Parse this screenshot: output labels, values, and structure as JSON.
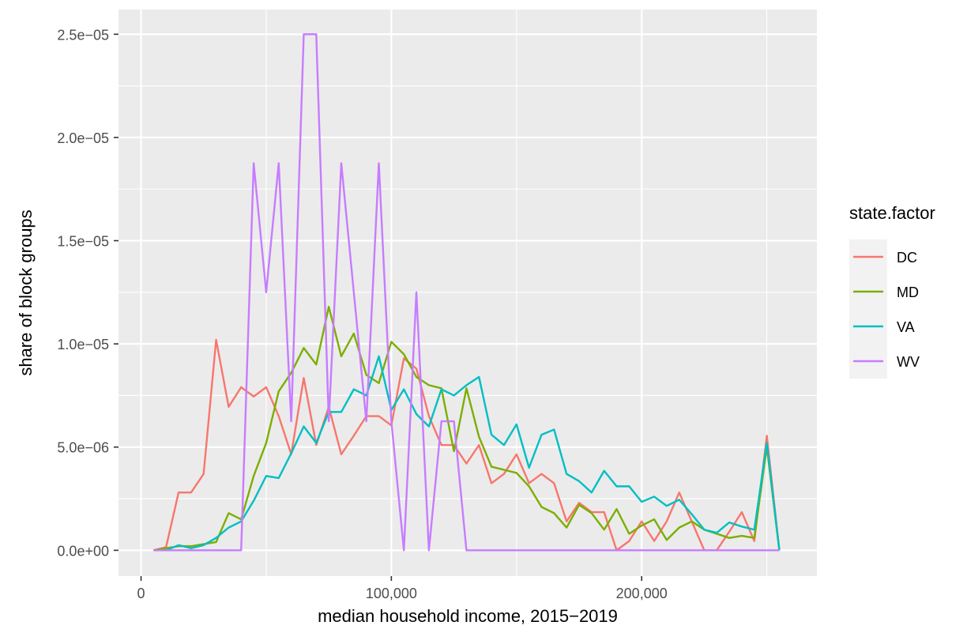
{
  "chart_data": {
    "type": "line",
    "title": "",
    "xlabel": "median household income, 2015−2019",
    "ylabel": "share of block groups",
    "xlim": [
      -9000,
      270000
    ],
    "ylim": [
      -1.25e-06,
      2.62e-05
    ],
    "x_ticks": [
      0,
      100000,
      200000
    ],
    "x_tick_labels": [
      "0",
      "100,000",
      "200,000"
    ],
    "y_ticks": [
      0,
      5e-06,
      1e-05,
      1.5e-05,
      2e-05,
      2.5e-05
    ],
    "y_tick_labels": [
      "0.0e+00",
      "5.0e−06",
      "1.0e−05",
      "1.5e−05",
      "2.0e−05",
      "2.5e−05"
    ],
    "grid": true,
    "legend": {
      "title": "state.factor",
      "placement": "right",
      "entries": [
        "DC",
        "MD",
        "VA",
        "WV"
      ]
    },
    "colors": {
      "panel": "#ebebeb",
      "grid_major": "#ffffff",
      "DC": "#f8766d",
      "MD": "#7cae00",
      "VA": "#00bfc4",
      "WV": "#c77cff",
      "text": "#4d4d4d",
      "axis_title": "#000000"
    },
    "series": [
      {
        "name": "DC",
        "x": [
          5000,
          10000,
          15000,
          20000,
          25000,
          30000,
          35000,
          40000,
          45000,
          50000,
          55000,
          60000,
          65000,
          70000,
          75000,
          80000,
          85000,
          90000,
          95000,
          100000,
          105000,
          110000,
          115000,
          120000,
          125000,
          130000,
          135000,
          140000,
          145000,
          150000,
          155000,
          160000,
          165000,
          170000,
          175000,
          180000,
          185000,
          190000,
          195000,
          200000,
          205000,
          210000,
          215000,
          220000,
          225000,
          230000,
          235000,
          240000,
          245000,
          250000,
          255000
        ],
        "y": [
          0,
          1.5e-07,
          2.8e-06,
          2.8e-06,
          3.7e-06,
          1.02e-05,
          6.95e-06,
          7.9e-06,
          7.45e-06,
          7.9e-06,
          6.5e-06,
          4.65e-06,
          8.35e-06,
          5.1e-06,
          6.95e-06,
          4.65e-06,
          5.55e-06,
          6.5e-06,
          6.5e-06,
          6.05e-06,
          9.3e-06,
          8.8e-06,
          6.5e-06,
          5.1e-06,
          5.1e-06,
          4.2e-06,
          5.1e-06,
          3.25e-06,
          3.7e-06,
          4.65e-06,
          3.25e-06,
          3.7e-06,
          3.25e-06,
          1.4e-06,
          2.3e-06,
          1.85e-06,
          1.85e-06,
          0,
          4.5e-07,
          1.4e-06,
          4.5e-07,
          1.4e-06,
          2.8e-06,
          1.4e-06,
          0,
          0,
          9e-07,
          1.85e-06,
          4.5e-07,
          5.55e-06,
          0
        ]
      },
      {
        "name": "MD",
        "x": [
          5000,
          10000,
          15000,
          20000,
          25000,
          30000,
          35000,
          40000,
          45000,
          50000,
          55000,
          60000,
          65000,
          70000,
          75000,
          80000,
          85000,
          90000,
          95000,
          100000,
          105000,
          110000,
          115000,
          120000,
          125000,
          130000,
          135000,
          140000,
          145000,
          150000,
          155000,
          160000,
          165000,
          170000,
          175000,
          180000,
          185000,
          190000,
          195000,
          200000,
          205000,
          210000,
          215000,
          220000,
          225000,
          230000,
          235000,
          240000,
          245000,
          250000,
          255000
        ],
        "y": [
          0,
          1e-07,
          2e-07,
          2e-07,
          3e-07,
          4e-07,
          1.8e-06,
          1.5e-06,
          3.6e-06,
          5.2e-06,
          7.7e-06,
          8.6e-06,
          9.8e-06,
          9e-06,
          1.18e-05,
          9.4e-06,
          1.05e-05,
          8.5e-06,
          8.1e-06,
          1.01e-05,
          9.5e-06,
          8.4e-06,
          8e-06,
          7.85e-06,
          4.8e-06,
          7.85e-06,
          5.5e-06,
          4.05e-06,
          3.9e-06,
          3.75e-06,
          3.1e-06,
          2.1e-06,
          1.8e-06,
          1.1e-06,
          2.2e-06,
          1.8e-06,
          1e-06,
          2e-06,
          8e-07,
          1.2e-06,
          1.5e-06,
          5e-07,
          1.1e-06,
          1.4e-06,
          1e-06,
          8e-07,
          6e-07,
          7e-07,
          6e-07,
          5e-06,
          0
        ]
      },
      {
        "name": "VA",
        "x": [
          5000,
          10000,
          15000,
          20000,
          25000,
          30000,
          35000,
          40000,
          45000,
          50000,
          55000,
          60000,
          65000,
          70000,
          75000,
          80000,
          85000,
          90000,
          95000,
          100000,
          105000,
          110000,
          115000,
          120000,
          125000,
          130000,
          135000,
          140000,
          145000,
          150000,
          155000,
          160000,
          165000,
          170000,
          175000,
          180000,
          185000,
          190000,
          195000,
          200000,
          205000,
          210000,
          215000,
          220000,
          225000,
          230000,
          235000,
          240000,
          245000,
          250000,
          255000
        ],
        "y": [
          0,
          0,
          2.5e-07,
          1e-07,
          2.5e-07,
          6e-07,
          1.1e-06,
          1.4e-06,
          2.4e-06,
          3.6e-06,
          3.5e-06,
          4.7e-06,
          6e-06,
          5.2e-06,
          6.7e-06,
          6.7e-06,
          7.8e-06,
          7.5e-06,
          9.4e-06,
          6.8e-06,
          7.8e-06,
          6.6e-06,
          6e-06,
          7.8e-06,
          7.5e-06,
          8e-06,
          8.4e-06,
          5.6e-06,
          5.1e-06,
          6.1e-06,
          4e-06,
          5.6e-06,
          5.85e-06,
          3.7e-06,
          3.35e-06,
          2.8e-06,
          3.85e-06,
          3.1e-06,
          3.1e-06,
          2.35e-06,
          2.6e-06,
          2.15e-06,
          2.45e-06,
          1.75e-06,
          1e-06,
          8.5e-07,
          1.35e-06,
          1.15e-06,
          1e-06,
          5.2e-06,
          0
        ]
      },
      {
        "name": "WV",
        "x": [
          5000,
          10000,
          15000,
          20000,
          25000,
          30000,
          35000,
          40000,
          45000,
          50000,
          55000,
          60000,
          65000,
          70000,
          75000,
          80000,
          85000,
          90000,
          95000,
          100000,
          105000,
          110000,
          115000,
          120000,
          125000,
          130000,
          135000,
          140000,
          145000,
          150000,
          155000,
          160000,
          165000,
          170000,
          175000,
          180000,
          185000,
          190000,
          195000,
          200000,
          205000,
          210000,
          215000,
          220000,
          225000,
          230000,
          235000,
          240000,
          245000,
          250000,
          255000
        ],
        "y": [
          0,
          0,
          0,
          0,
          0,
          0,
          0,
          0,
          1.875e-05,
          1.25e-05,
          1.875e-05,
          6.25e-06,
          2.5e-05,
          2.5e-05,
          6.25e-06,
          1.875e-05,
          1.25e-05,
          6.25e-06,
          1.875e-05,
          6.25e-06,
          0,
          1.25e-05,
          0,
          6.25e-06,
          6.25e-06,
          0,
          0,
          0,
          0,
          0,
          0,
          0,
          0,
          0,
          0,
          0,
          0,
          0,
          0,
          0,
          0,
          0,
          0,
          0,
          0,
          0,
          0,
          0,
          0,
          0,
          0
        ]
      }
    ]
  }
}
